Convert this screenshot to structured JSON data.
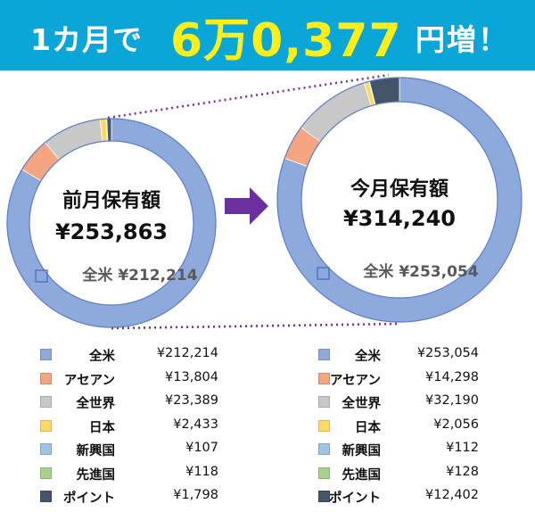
{
  "banner": {
    "prefix": "1カ月で",
    "amount": "6万0,377",
    "suffix": "円増！"
  },
  "colors": {
    "banner_bg": "#0aa6d8",
    "banner_amount": "#ffee1a",
    "arrow": "#6b2fa0",
    "connector": "#7a2f9c"
  },
  "chart_data": [
    {
      "type": "donut",
      "title": "前月保有額",
      "total_label": "¥253,863",
      "callout": "全米 ¥212,214",
      "categories": [
        "全米",
        "アセアン",
        "全世界",
        "日本",
        "新興国",
        "先進国",
        "ポイント"
      ],
      "values": [
        212214,
        13804,
        23389,
        2433,
        107,
        118,
        1798
      ],
      "value_labels": [
        "¥212,214",
        "¥13,804",
        "¥23,389",
        "¥2,433",
        "¥107",
        "¥118",
        "¥1,798"
      ],
      "colors": [
        "#8ea9db",
        "#f4a582",
        "#c8c8c8",
        "#ffd966",
        "#9dc3e6",
        "#a9d18e",
        "#44546a"
      ]
    },
    {
      "type": "donut",
      "title": "今月保有額",
      "total_label": "¥314,240",
      "callout": "全米 ¥253,054",
      "categories": [
        "全米",
        "アセアン",
        "全世界",
        "日本",
        "新興国",
        "先進国",
        "ポイント"
      ],
      "values": [
        253054,
        14298,
        32190,
        2056,
        112,
        128,
        12402
      ],
      "value_labels": [
        "¥253,054",
        "¥14,298",
        "¥32,190",
        "¥2,056",
        "¥112",
        "¥128",
        "¥12,402"
      ],
      "colors": [
        "#8ea9db",
        "#f4a582",
        "#c8c8c8",
        "#ffd966",
        "#9dc3e6",
        "#a9d18e",
        "#44546a"
      ]
    }
  ]
}
